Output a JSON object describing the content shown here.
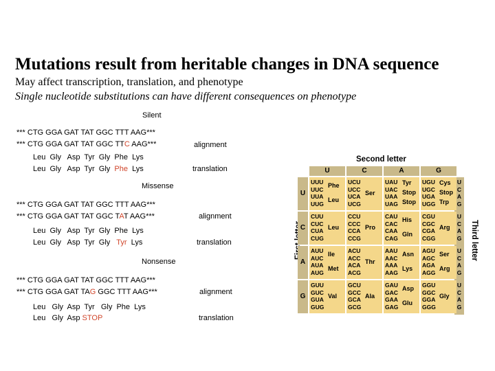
{
  "title": "Mutations result from heritable changes in DNA sequence",
  "subtitle1": "May affect transcription, translation, and phenotype",
  "subtitle2": "Single nucleotide substitutions can have different consequences on phenotype",
  "silent": {
    "heading": "Silent",
    "seq1": "*** CTG GGA GAT TAT GGC TTT AAG***",
    "seq2_a": "*** CTG GGA GAT TAT GGC TT",
    "seq2_b": "C",
    "seq2_c": " AAG***",
    "label_alignment": "alignment",
    "aa1": "Leu  Gly   Asp  Tyr  Gly  Phe  Lys",
    "aa2_a": "Leu  Gly   Asp  Tyr  Gly  ",
    "aa2_b": "Phe",
    "aa2_c": "  Lys",
    "label_translation": "translation"
  },
  "missense": {
    "heading": "Missense",
    "seq1": "*** CTG GGA GAT TAT GGC TTT AAG***",
    "seq2_a": "*** CTG GGA GAT TAT GGC T",
    "seq2_b": "A",
    "seq2_c": "T AAG***",
    "label_alignment": "alignment",
    "aa1": "Leu  Gly   Asp  Tyr  Gly  Phe  Lys",
    "aa2_a": "Leu  Gly   Asp  Tyr  Gly   ",
    "aa2_b": "Tyr",
    "aa2_c": "  Lys",
    "label_translation": "translation"
  },
  "nonsense": {
    "heading": "Nonsense",
    "seq1": "*** CTG GGA GAT TAT GGC TTT AAG***",
    "seq2_a": "*** CTG GGA GAT TA",
    "seq2_b": "G",
    "seq2_c": " GGC TTT AAG***",
    "label_alignment": "alignment",
    "aa1": "Leu   Gly  Asp  Tyr   Gly  Phe  Lys",
    "aa2_a": "Leu   Gly  Asp ",
    "aa2_b": "STOP",
    "label_translation": "translation"
  },
  "codon_table": {
    "second_letter_label": "Second letter",
    "first_letter_label": "First letter",
    "third_letter_label": "Third letter",
    "columns": [
      "U",
      "C",
      "A",
      "G"
    ],
    "rows": [
      "U",
      "C",
      "A",
      "G"
    ],
    "third": [
      "U\nC\nA\nG",
      "U\nC\nA\nG",
      "U\nC\nA\nG",
      "U\nC\nA\nG"
    ],
    "cells": [
      [
        {
          "codons": "UUU\nUUC\nUUA\nUUG",
          "aa": [
            "Phe",
            "Leu"
          ]
        },
        {
          "codons": "UCU\nUCC\nUCA\nUCG",
          "aa": [
            "Ser"
          ]
        },
        {
          "codons": "UAU\nUAC\nUAA\nUAG",
          "aa": [
            "Tyr",
            "Stop",
            "Stop"
          ]
        },
        {
          "codons": "UGU\nUGC\nUGA\nUGG",
          "aa": [
            "Cys",
            "Stop",
            "Trp"
          ]
        }
      ],
      [
        {
          "codons": "CUU\nCUC\nCUA\nCUG",
          "aa": [
            "Leu"
          ]
        },
        {
          "codons": "CCU\nCCC\nCCA\nCCG",
          "aa": [
            "Pro"
          ]
        },
        {
          "codons": "CAU\nCAC\nCAA\nCAG",
          "aa": [
            "His",
            "Gln"
          ]
        },
        {
          "codons": "CGU\nCGC\nCGA\nCGG",
          "aa": [
            "Arg"
          ]
        }
      ],
      [
        {
          "codons": "AUU\nAUC\nAUA\nAUG",
          "aa": [
            "Ile",
            "Met"
          ]
        },
        {
          "codons": "ACU\nACC\nACA\nACG",
          "aa": [
            "Thr"
          ]
        },
        {
          "codons": "AAU\nAAC\nAAA\nAAG",
          "aa": [
            "Asn",
            "Lys"
          ]
        },
        {
          "codons": "AGU\nAGC\nAGA\nAGG",
          "aa": [
            "Ser",
            "Arg"
          ]
        }
      ],
      [
        {
          "codons": "GUU\nGUC\nGUA\nGUG",
          "aa": [
            "Val"
          ]
        },
        {
          "codons": "GCU\nGCC\nGCA\nGCG",
          "aa": [
            "Ala"
          ]
        },
        {
          "codons": "GAU\nGAC\nGAA\nGAG",
          "aa": [
            "Asp",
            "Glu"
          ]
        },
        {
          "codons": "GGU\nGGC\nGGA\nGGG",
          "aa": [
            "Gly"
          ]
        }
      ]
    ]
  }
}
